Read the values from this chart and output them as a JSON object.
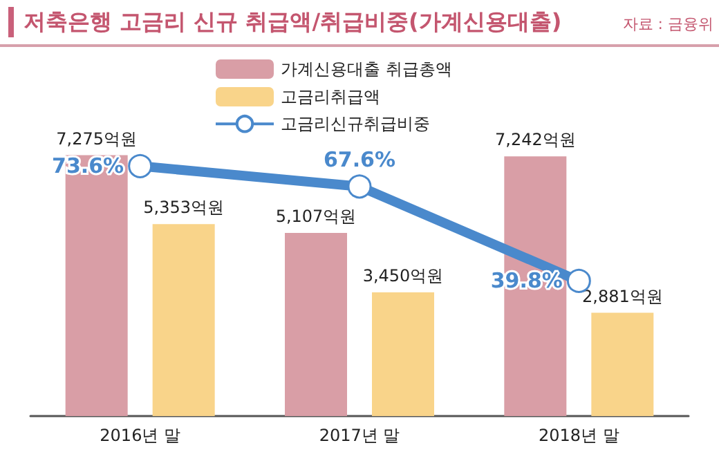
{
  "chart_data": {
    "type": "bar",
    "title": "저축은행 고금리 신규 취급액/취급비중(가계신용대출)",
    "annotations": [
      "자료 : 금융위"
    ],
    "categories": [
      "2016년 말",
      "2017년 말",
      "2018년 말"
    ],
    "series": [
      {
        "name": "가계신용대출 취급총액",
        "color": "#d99ea6",
        "values": [
          7275,
          5107,
          7242
        ],
        "value_labels": [
          "7,275억원",
          "5,107억원",
          "7,242억원"
        ]
      },
      {
        "name": "고금리취급액",
        "color": "#f9d48a",
        "values": [
          5353,
          3450,
          2881
        ],
        "value_labels": [
          "5,353억원",
          "3,450억원",
          "2,881억원"
        ]
      },
      {
        "name": "고금리신규취급비중",
        "type": "line",
        "axis": "y2",
        "color": "#4a89cc",
        "values": [
          73.6,
          67.6,
          39.8
        ],
        "value_labels": [
          "73.6%",
          "67.6%",
          "39.8%"
        ]
      }
    ],
    "legend": "top",
    "tick_labels": "x",
    "marker": "circle"
  }
}
